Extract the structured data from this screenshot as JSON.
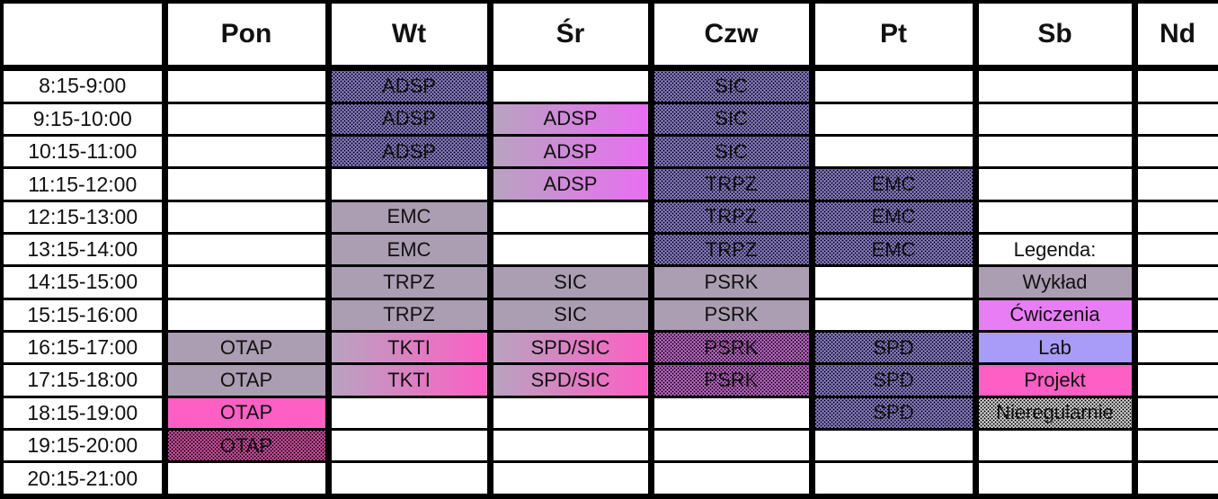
{
  "colors": {
    "wyklad": "#ab9db2",
    "cwiczenia": "#e87ef5",
    "lab": "#a99bf8",
    "projekt": "#fd5fc4",
    "gradient_start": "#b8a3c0",
    "gradient_cwiczenia_end": "#e96ef2",
    "white": "#ffffff",
    "dot": "#000000",
    "border": "#000000"
  },
  "grid": {
    "columns": [
      {
        "key": "time",
        "label": ""
      },
      {
        "key": "pon",
        "label": "Pon"
      },
      {
        "key": "wt",
        "label": "Wt"
      },
      {
        "key": "sr",
        "label": "Śr"
      },
      {
        "key": "czw",
        "label": "Czw"
      },
      {
        "key": "pt",
        "label": "Pt"
      },
      {
        "key": "sb",
        "label": "Sb"
      },
      {
        "key": "nd",
        "label": "Nd"
      }
    ],
    "rows": [
      {
        "time": "8:15-9:00",
        "cells": [
          null,
          {
            "text": "ADSP",
            "fill": "lab",
            "dots": true
          },
          null,
          {
            "text": "SIC",
            "fill": "lab",
            "dots": true
          },
          null,
          null,
          null
        ]
      },
      {
        "time": "9:15-10:00",
        "cells": [
          null,
          {
            "text": "ADSP",
            "fill": "lab",
            "dots": true
          },
          {
            "text": "ADSP",
            "gradient": [
              "gradient_start",
              "gradient_cwiczenia_end"
            ]
          },
          {
            "text": "SIC",
            "fill": "lab",
            "dots": true
          },
          null,
          null,
          null
        ]
      },
      {
        "time": "10:15-11:00",
        "cells": [
          null,
          {
            "text": "ADSP",
            "fill": "lab",
            "dots": true
          },
          {
            "text": "ADSP",
            "gradient": [
              "gradient_start",
              "gradient_cwiczenia_end"
            ]
          },
          {
            "text": "SIC",
            "fill": "lab",
            "dots": true
          },
          null,
          null,
          null
        ]
      },
      {
        "time": "11:15-12:00",
        "cells": [
          null,
          null,
          {
            "text": "ADSP",
            "gradient": [
              "gradient_start",
              "gradient_cwiczenia_end"
            ]
          },
          {
            "text": "TRPZ",
            "fill": "lab",
            "dots": true
          },
          {
            "text": "EMC",
            "fill": "lab",
            "dots": true
          },
          null,
          null
        ]
      },
      {
        "time": "12:15-13:00",
        "cells": [
          null,
          {
            "text": "EMC",
            "fill": "wyklad"
          },
          null,
          {
            "text": "TRPZ",
            "fill": "lab",
            "dots": true
          },
          {
            "text": "EMC",
            "fill": "lab",
            "dots": true
          },
          null,
          null
        ]
      },
      {
        "time": "13:15-14:00",
        "cells": [
          null,
          {
            "text": "EMC",
            "fill": "wyklad"
          },
          null,
          {
            "text": "TRPZ",
            "fill": "lab",
            "dots": true
          },
          {
            "text": "EMC",
            "fill": "lab",
            "dots": true
          },
          {
            "text": "Legenda:",
            "fill": "white",
            "name": "legend-title"
          },
          null
        ]
      },
      {
        "time": "14:15-15:00",
        "cells": [
          null,
          {
            "text": "TRPZ",
            "fill": "wyklad"
          },
          {
            "text": "SIC",
            "fill": "wyklad"
          },
          {
            "text": "PSRK",
            "fill": "wyklad"
          },
          null,
          {
            "text": "Wykład",
            "fill": "wyklad",
            "name": "legend-wyklad"
          },
          null
        ]
      },
      {
        "time": "15:15-16:00",
        "cells": [
          null,
          {
            "text": "TRPZ",
            "fill": "wyklad"
          },
          {
            "text": "SIC",
            "fill": "wyklad"
          },
          {
            "text": "PSRK",
            "fill": "wyklad"
          },
          null,
          {
            "text": "Ćwiczenia",
            "fill": "cwiczenia",
            "name": "legend-cwiczenia"
          },
          null
        ]
      },
      {
        "time": "16:15-17:00",
        "cells": [
          {
            "text": "OTAP",
            "fill": "wyklad"
          },
          {
            "text": "TKTI",
            "gradient": [
              "gradient_start",
              "projekt"
            ]
          },
          {
            "text": "SPD/SIC",
            "gradient": [
              "gradient_start",
              "projekt"
            ]
          },
          {
            "text": "PSRK",
            "fill": "cwiczenia",
            "dots": true
          },
          {
            "text": "SPD",
            "fill": "lab",
            "dots": true
          },
          {
            "text": "Lab",
            "fill": "lab",
            "name": "legend-lab"
          },
          null
        ]
      },
      {
        "time": "17:15-18:00",
        "cells": [
          {
            "text": "OTAP",
            "fill": "wyklad"
          },
          {
            "text": "TKTI",
            "gradient": [
              "gradient_start",
              "projekt"
            ]
          },
          {
            "text": "SPD/SIC",
            "gradient": [
              "gradient_start",
              "projekt"
            ]
          },
          {
            "text": "PSRK",
            "fill": "cwiczenia",
            "dots": true
          },
          {
            "text": "SPD",
            "fill": "lab",
            "dots": true
          },
          {
            "text": "Projekt",
            "fill": "projekt",
            "name": "legend-projekt"
          },
          null
        ]
      },
      {
        "time": "18:15-19:00",
        "cells": [
          {
            "text": "OTAP",
            "fill": "projekt"
          },
          null,
          null,
          null,
          {
            "text": "SPD",
            "fill": "lab",
            "dots": true
          },
          {
            "text": "Nieregularnie",
            "fill": "white",
            "dots": true,
            "name": "legend-nieregularnie"
          },
          null
        ]
      },
      {
        "time": "19:15-20:00",
        "cells": [
          {
            "text": "OTAP",
            "fill": "projekt",
            "dots": true
          },
          null,
          null,
          null,
          null,
          null,
          null
        ]
      },
      {
        "time": "20:15-21:00",
        "cells": [
          null,
          null,
          null,
          null,
          null,
          null,
          null
        ]
      }
    ]
  }
}
